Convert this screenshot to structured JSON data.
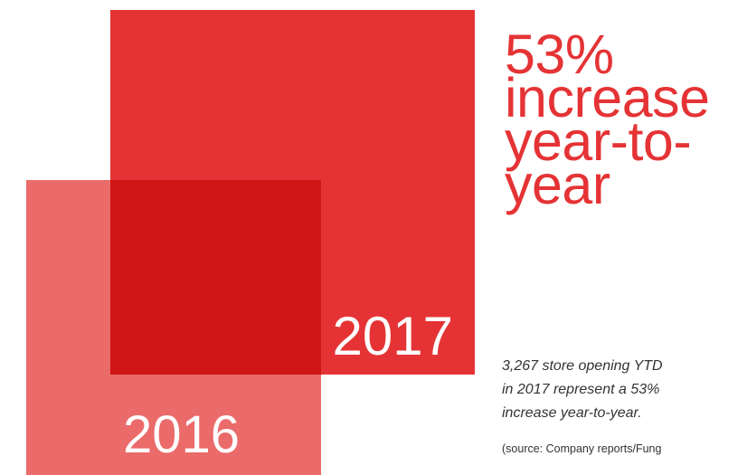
{
  "chart_data": {
    "type": "area-comparison-squares",
    "categories": [
      "2016",
      "2017"
    ],
    "values": [
      2135,
      3267
    ],
    "unit": "store openings YTD",
    "change_percent": 53
  },
  "headline": {
    "line1": "53%",
    "line2": "increase",
    "line3": "year-to-",
    "line4": "year"
  },
  "caption": {
    "line1": "3,267 store opening YTD",
    "line2": "in 2017 represent a 53%",
    "line3": "increase year-to-year.",
    "source": "(source: Company reports/Fung"
  },
  "colors": {
    "year_2016": "#eb6a6a",
    "year_2017": "#e53335",
    "overlap": "#d01515",
    "headline_text": "#e53335",
    "caption_text": "#333333"
  }
}
